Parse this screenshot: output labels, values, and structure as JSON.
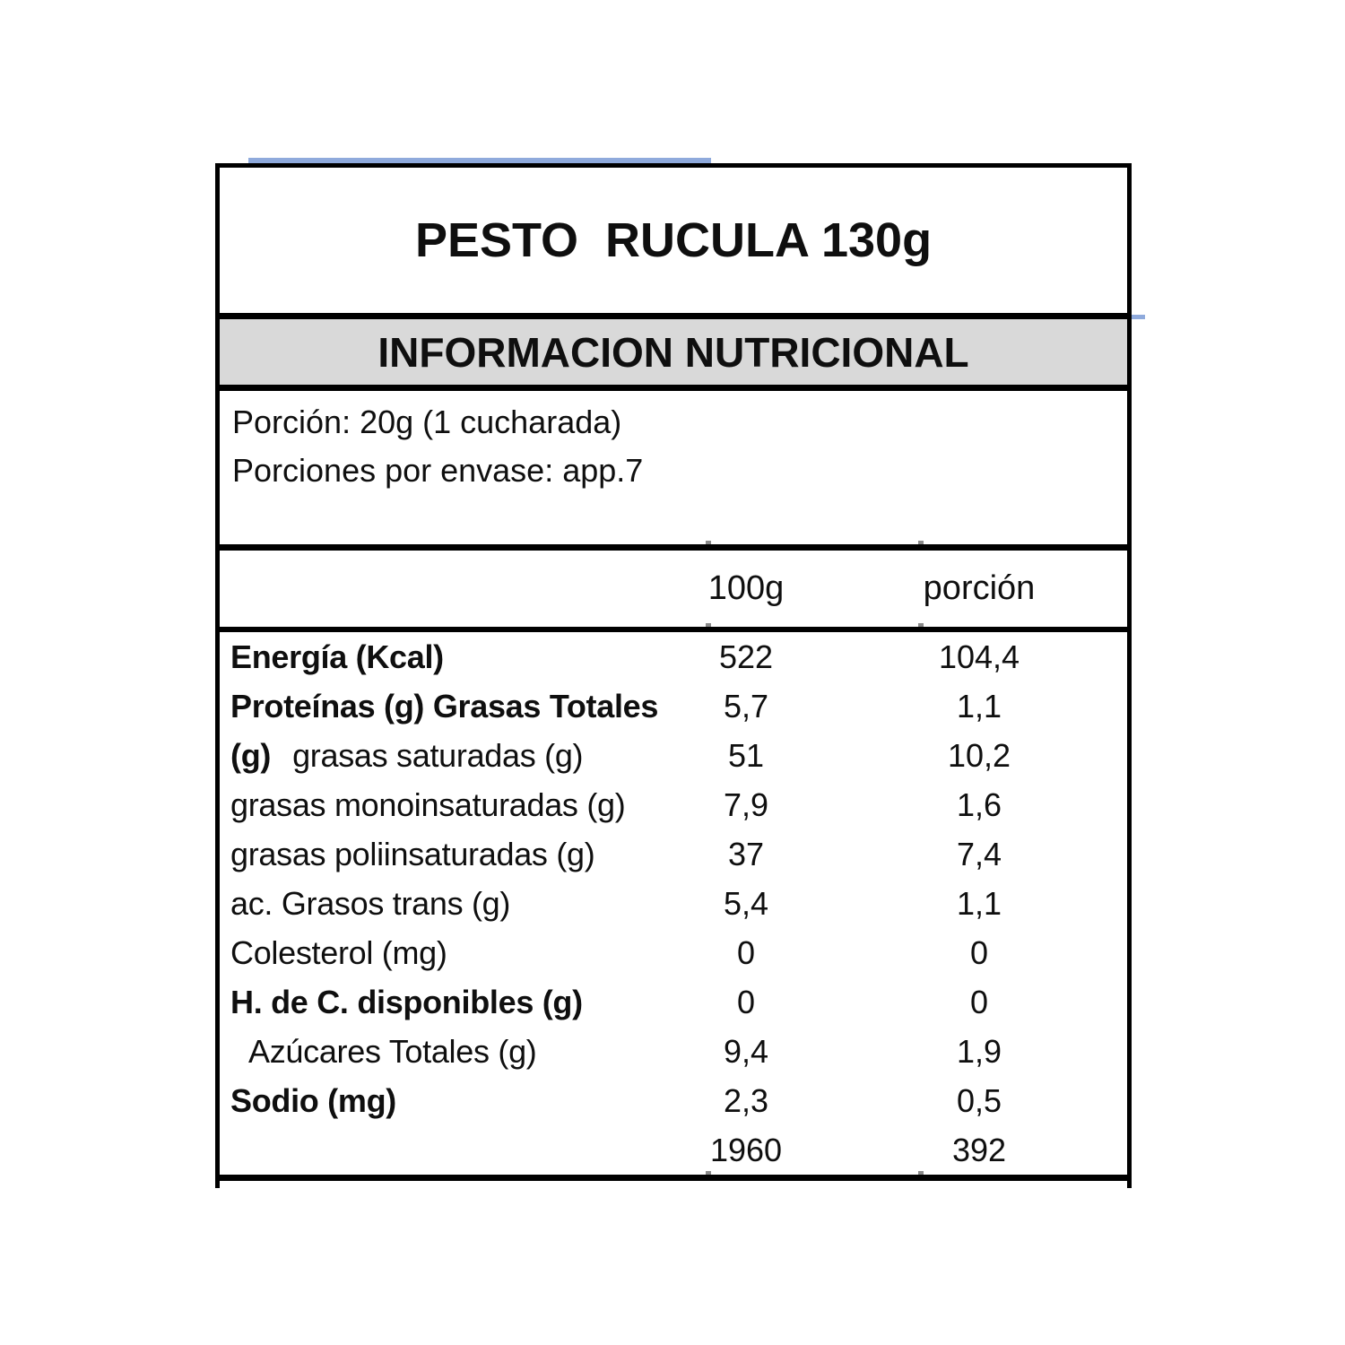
{
  "label": {
    "title": "PESTO  RUCULA 130g",
    "section_header": "INFORMACION NUTRICIONAL",
    "serving": {
      "line1": "Porción: 20g (1 cucharada)",
      "line2": "Porciones por envase: app.7"
    },
    "columns": {
      "per100g": "100g",
      "portion": "porción"
    },
    "rows": [
      {
        "label": "Energía (Kcal)",
        "bold": true,
        "indent": false,
        "per100g": "522",
        "portion": "104,4"
      },
      {
        "label": "Proteínas (g) Grasas Totales",
        "bold": true,
        "indent": false,
        "per100g": "5,7",
        "portion": "1,1"
      },
      {
        "prefix": "(g)",
        "label": "grasas saturadas (g)",
        "bold": false,
        "indent": false,
        "per100g": "51",
        "portion": "10,2"
      },
      {
        "label": "grasas monoinsaturadas (g)",
        "bold": false,
        "indent": false,
        "per100g": "7,9",
        "portion": "1,6"
      },
      {
        "label": "grasas poliinsaturadas (g)",
        "bold": false,
        "indent": false,
        "per100g": "37",
        "portion": "7,4"
      },
      {
        "label": "ac. Grasos trans (g)",
        "bold": false,
        "indent": false,
        "per100g": "5,4",
        "portion": "1,1"
      },
      {
        "label": "Colesterol (mg)",
        "bold": false,
        "indent": false,
        "per100g": "0",
        "portion": "0"
      },
      {
        "label": "H. de C. disponibles (g)",
        "bold": true,
        "indent": false,
        "per100g": "0",
        "portion": "0"
      },
      {
        "label": "Azúcares Totales (g)",
        "bold": false,
        "indent": true,
        "per100g": "9,4",
        "portion": "1,9"
      },
      {
        "label": "Sodio (mg)",
        "bold": true,
        "indent": false,
        "per100g": "2,3",
        "portion": "0,5"
      },
      {
        "label": "",
        "bold": false,
        "indent": false,
        "per100g": "1960",
        "portion": "392"
      }
    ],
    "colors": {
      "accent_blue": "#8faadc",
      "band_gray": "#d9d9d9",
      "border_black": "#000000",
      "text": "#0f0f0f"
    }
  }
}
